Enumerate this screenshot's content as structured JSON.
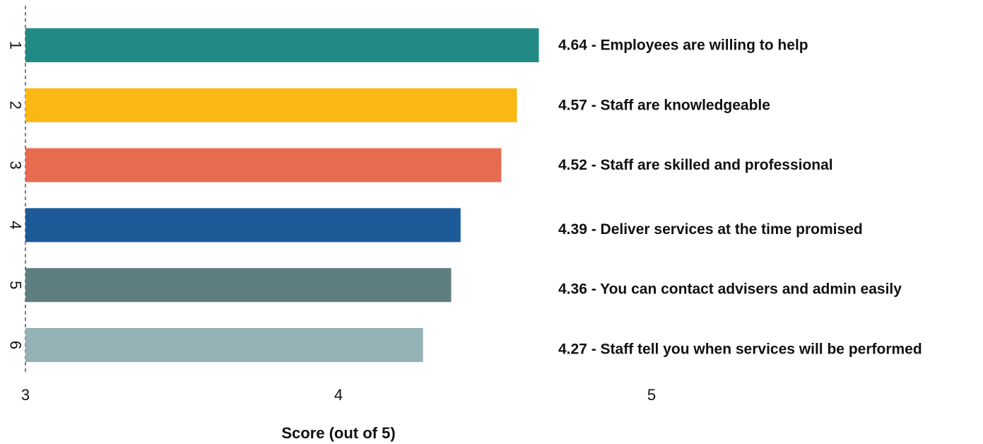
{
  "chart_data": {
    "type": "bar",
    "orientation": "horizontal",
    "xlabel": "Score (out of 5)",
    "xlim": [
      3,
      5
    ],
    "xticks": [
      3,
      4,
      5
    ],
    "categories": [
      "1",
      "2",
      "3",
      "4",
      "5",
      "6"
    ],
    "values": [
      4.64,
      4.57,
      4.52,
      4.39,
      4.36,
      4.27
    ],
    "labels": [
      "4.64 - Employees are willing to help",
      "4.57 - Staff are knowledgeable",
      "4.52 - Staff are skilled and professional",
      "4.39 - Deliver services at the time promised",
      "4.36 - You can contact advisers and admin easily",
      "4.27 - Staff tell you when services will be performed"
    ],
    "colors": [
      "#218a84",
      "#fbb814",
      "#e76b4f",
      "#1d5b98",
      "#5f7e80",
      "#94b1b6"
    ],
    "grid": false,
    "legend": "none",
    "baseline_style": "dashed"
  }
}
